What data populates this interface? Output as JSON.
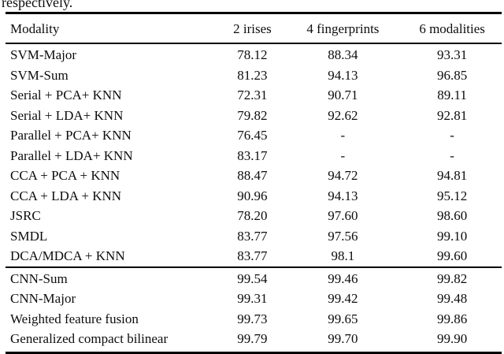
{
  "page": {
    "intro_text": "respectively."
  },
  "table": {
    "columns": [
      "Modality",
      "2 irises",
      "4 fingerprints",
      "6 modalities"
    ],
    "groups": [
      {
        "rows": [
          [
            "SVM-Major",
            "78.12",
            "88.34",
            "93.31"
          ],
          [
            "SVM-Sum",
            "81.23",
            "94.13",
            "96.85"
          ],
          [
            "Serial + PCA+ KNN",
            "72.31",
            "90.71",
            "89.11"
          ],
          [
            "Serial + LDA+ KNN",
            "79.82",
            "92.62",
            "92.81"
          ],
          [
            "Parallel + PCA+ KNN",
            "76.45",
            "-",
            "-"
          ],
          [
            "Parallel + LDA+ KNN",
            "83.17",
            "-",
            "-"
          ],
          [
            "CCA + PCA + KNN",
            "88.47",
            "94.72",
            "94.81"
          ],
          [
            "CCA + LDA + KNN",
            "90.96",
            "94.13",
            "95.12"
          ],
          [
            "JSRC",
            "78.20",
            "97.60",
            "98.60"
          ],
          [
            "SMDL",
            "83.77",
            "97.56",
            "99.10"
          ],
          [
            "DCA/MDCA + KNN",
            "83.77",
            "98.1",
            "99.60"
          ]
        ]
      },
      {
        "rows": [
          [
            "CNN-Sum",
            "99.54",
            "99.46",
            "99.82"
          ],
          [
            "CNN-Major",
            "99.31",
            "99.42",
            "99.48"
          ],
          [
            "Weighted feature fusion",
            "99.73",
            "99.65",
            "99.86"
          ],
          [
            "Generalized compact bilinear",
            "99.79",
            "99.70",
            "99.90"
          ]
        ]
      }
    ]
  }
}
